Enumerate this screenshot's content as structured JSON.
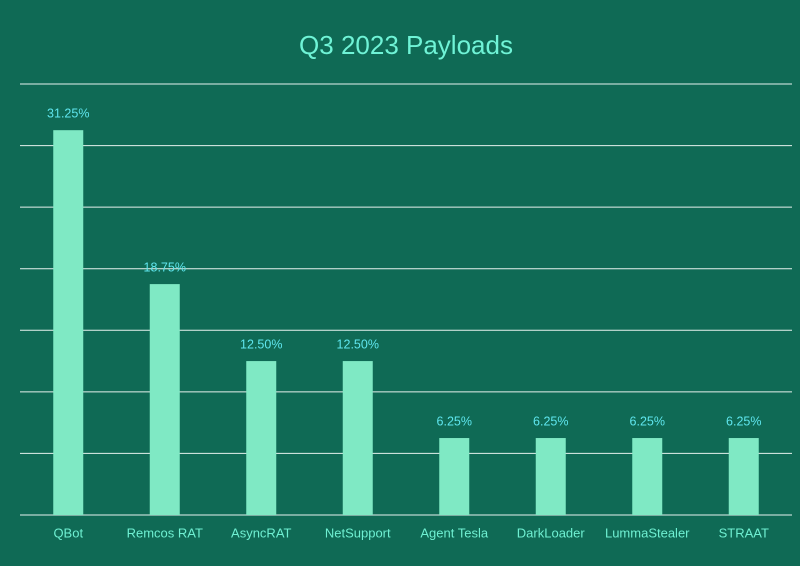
{
  "chart_data": {
    "type": "bar",
    "title": "Q3 2023 Payloads",
    "categories": [
      "QBot",
      "Remcos RAT",
      "AsyncRAT",
      "NetSupport",
      "Agent Tesla",
      "DarkLoader",
      "LummaStealer",
      "STRAAT"
    ],
    "values": [
      31.25,
      18.75,
      12.5,
      12.5,
      6.25,
      6.25,
      6.25,
      6.25
    ],
    "value_labels": [
      "31.25%",
      "18.75%",
      "12.50%",
      "12.50%",
      "6.25%",
      "6.25%",
      "6.25%",
      "6.25%"
    ],
    "color": "#7fe9c4",
    "ylim": [
      0,
      35
    ],
    "yticks": [
      0,
      5,
      10,
      15,
      20,
      25,
      30,
      35
    ],
    "grid": true
  }
}
